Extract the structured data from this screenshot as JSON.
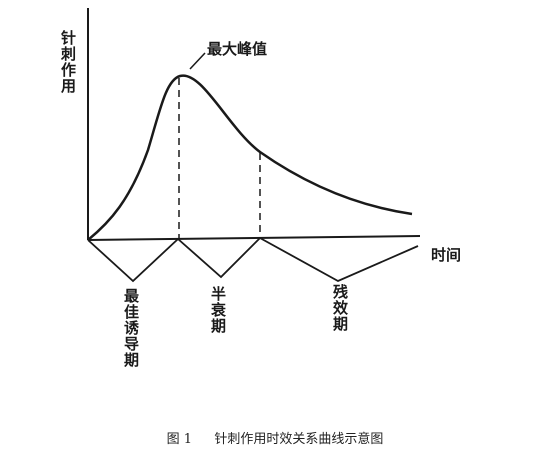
{
  "figure": {
    "y_axis_label": "针刺作用",
    "x_axis_label": "时间",
    "peak_label": "最大峰值",
    "phases": [
      {
        "label": "最佳诱导期"
      },
      {
        "label": "半衰期"
      },
      {
        "label": "残效期"
      }
    ],
    "caption_number": "图 1",
    "caption_text": "针刺作用时效关系曲线示意图",
    "line_color": "#1a1a1a"
  }
}
